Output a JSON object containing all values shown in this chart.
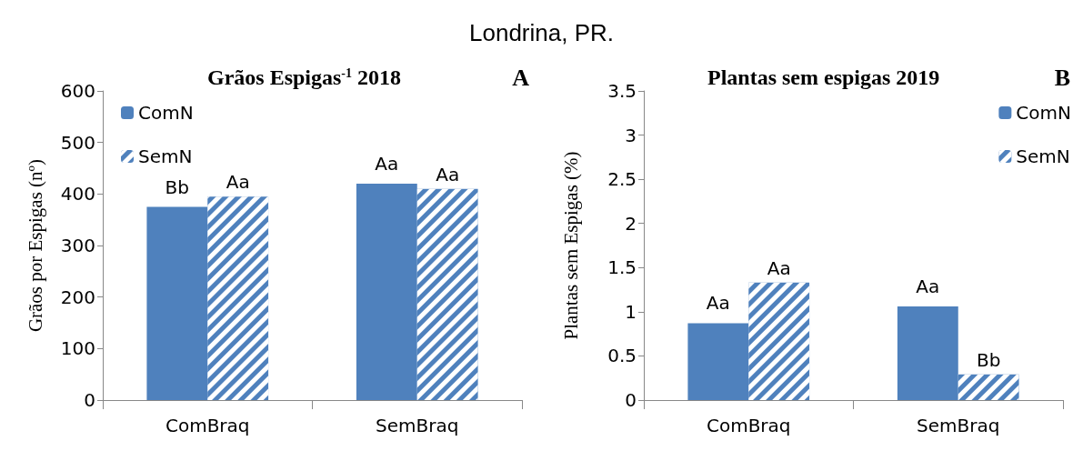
{
  "chart_data": [
    {
      "type": "bar",
      "title": "Grãos Espigas$^{-1}$ 2018",
      "ylabel": "Grãos por Espigas (nº)",
      "annotations": [
        "Londrina, PR.",
        "A"
      ],
      "categories": [
        "ComBraq",
        "SemBraq"
      ],
      "series": [
        {
          "name": "ComN",
          "color": "#4f81bd",
          "values": [
            375,
            420
          ],
          "value_labels": [
            "Bb",
            "Aa"
          ]
        },
        {
          "name": "SemN",
          "color": "#4f81bd",
          "values": [
            395,
            410
          ],
          "value_labels": [
            "Aa",
            "Aa"
          ]
        }
      ],
      "ylim": [
        0,
        600
      ],
      "yticks": [
        0,
        100,
        200,
        300,
        400,
        500,
        600
      ],
      "grid": false,
      "legend": "top left"
    },
    {
      "type": "bar",
      "title": "Plantas sem espigas 2019",
      "ylabel": "Plantas sem Espigas (%)",
      "annotations": [
        "B"
      ],
      "categories": [
        "ComBraq",
        "SemBraq"
      ],
      "series": [
        {
          "name": "ComN",
          "color": "#4f81bd",
          "values": [
            0.87,
            1.06
          ],
          "value_labels": [
            "Aa",
            "Aa"
          ]
        },
        {
          "name": "SemN",
          "color": "#4f81bd",
          "values": [
            1.33,
            0.29
          ],
          "value_labels": [
            "Aa",
            "Bb"
          ]
        }
      ],
      "ylim": [
        0,
        3.5
      ],
      "yticks": [
        0,
        0.5,
        1,
        1.5,
        2,
        2.5,
        3,
        3.5
      ],
      "grid": false,
      "legend": "top right"
    }
  ]
}
